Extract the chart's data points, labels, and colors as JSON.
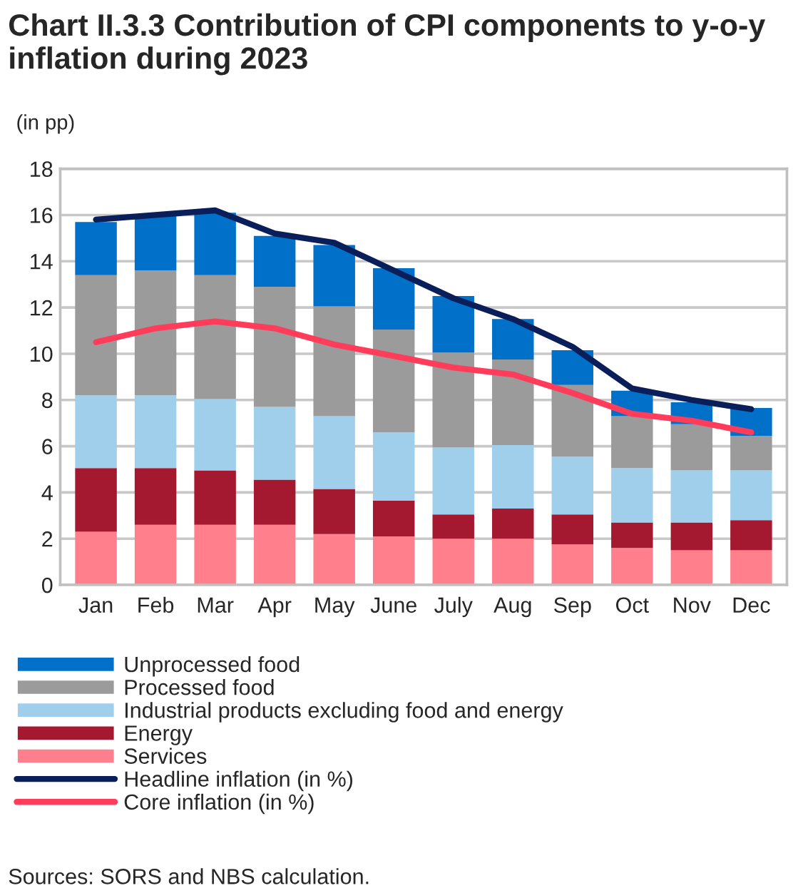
{
  "chart_data": {
    "type": "bar",
    "stacked": true,
    "title": "Chart II.3.3 Contribution of CPI components to y-o-y inflation during 2023",
    "subtitle": "(in pp)",
    "categories": [
      "Jan",
      "Feb",
      "Mar",
      "Apr",
      "May",
      "June",
      "July",
      "Aug",
      "Sep",
      "Oct",
      "Nov",
      "Dec"
    ],
    "series": [
      {
        "name": "Services",
        "color": "#ff808c",
        "values": [
          2.3,
          2.6,
          2.6,
          2.6,
          2.2,
          2.1,
          2.0,
          2.0,
          1.75,
          1.6,
          1.5,
          1.5
        ]
      },
      {
        "name": "Energy",
        "color": "#a51930",
        "values": [
          2.75,
          2.45,
          2.35,
          1.95,
          1.95,
          1.55,
          1.05,
          1.3,
          1.3,
          1.1,
          1.2,
          1.3
        ]
      },
      {
        "name": "Industrial products excluding food and energy",
        "color": "#9fcfeb",
        "values": [
          3.15,
          3.15,
          3.1,
          3.15,
          3.15,
          2.95,
          2.9,
          2.75,
          2.5,
          2.35,
          2.25,
          2.15
        ]
      },
      {
        "name": "Processed food",
        "color": "#9b9b9b",
        "values": [
          5.2,
          5.4,
          5.35,
          5.2,
          4.75,
          4.45,
          4.1,
          3.7,
          3.1,
          2.25,
          2.0,
          1.5
        ]
      },
      {
        "name": "Unprocessed food",
        "color": "#0070c8",
        "values": [
          2.3,
          2.4,
          2.7,
          2.2,
          2.65,
          2.65,
          2.45,
          1.75,
          1.5,
          1.1,
          0.95,
          1.2
        ]
      },
      {
        "name": "Headline inflation (in %)",
        "type": "line",
        "color": "#0a1e5a",
        "values": [
          15.8,
          16.0,
          16.2,
          15.2,
          14.8,
          13.6,
          12.4,
          11.5,
          10.3,
          8.5,
          8.0,
          7.6
        ]
      },
      {
        "name": "Core inflation (in %)",
        "type": "line",
        "color": "#ff3c5a",
        "values": [
          10.5,
          11.1,
          11.4,
          11.1,
          10.4,
          9.9,
          9.4,
          9.1,
          8.3,
          7.4,
          7.1,
          6.6
        ]
      }
    ],
    "ylim": [
      0,
      18
    ],
    "yticks": [
      0,
      2,
      4,
      6,
      8,
      10,
      12,
      14,
      16,
      18
    ],
    "grid": "y",
    "legend": "bottom",
    "marker": "none",
    "line_style": "solid",
    "annotations": [
      "Sources: SORS and NBS calculation."
    ]
  }
}
